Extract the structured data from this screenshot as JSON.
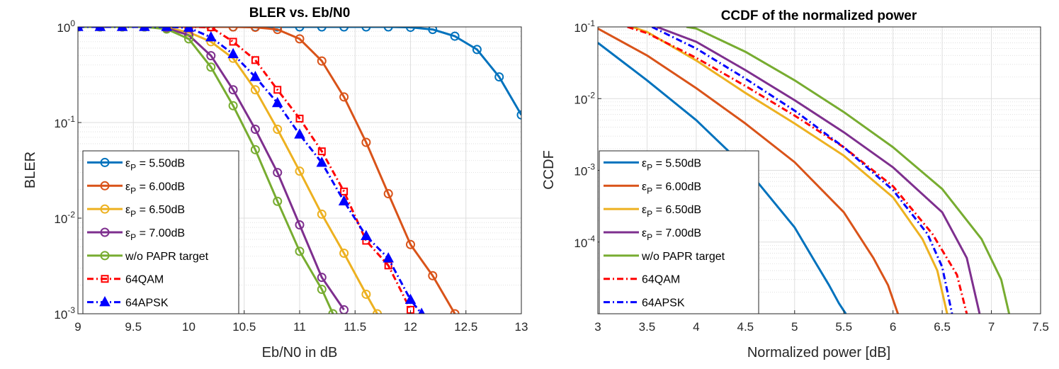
{
  "chart_data": [
    {
      "type": "line",
      "title": "BLER vs. Eb/N0",
      "xlabel": "Eb/N0 in dB",
      "ylabel": "BLER",
      "xscale": "linear",
      "yscale": "log",
      "xlim": [
        9,
        13
      ],
      "ylim": [
        0.001,
        1
      ],
      "xticks": [
        9,
        9.5,
        10,
        10.5,
        11,
        11.5,
        12,
        12.5,
        13
      ],
      "xtick_labels": [
        "9",
        "9.5",
        "10",
        "10.5",
        "11",
        "11.5",
        "12",
        "12.5",
        "13"
      ],
      "yticks": [
        {
          "value": 1,
          "base": "10",
          "exp": "0"
        },
        {
          "value": 0.1,
          "base": "10",
          "exp": "-1"
        },
        {
          "value": 0.01,
          "base": "10",
          "exp": "-2"
        },
        {
          "value": 0.001,
          "base": "10",
          "exp": "-3"
        }
      ],
      "grid": true,
      "legend_position": "bottom-left",
      "series": [
        {
          "name": "εP = 5.50dB",
          "sym": "ε",
          "sub": "P",
          "rest": " = 5.50dB",
          "color": "#0072BD",
          "style": "solid",
          "marker": "circle",
          "x": [
            9,
            9.2,
            9.4,
            9.6,
            9.8,
            10,
            10.2,
            10.4,
            10.6,
            10.8,
            11,
            11.2,
            11.4,
            11.6,
            11.8,
            12,
            12.2,
            12.4,
            12.6,
            12.8,
            13
          ],
          "y": [
            1,
            1,
            1,
            1,
            1,
            1,
            1,
            1,
            1,
            1,
            1,
            1,
            1,
            1,
            1,
            0.99,
            0.94,
            0.8,
            0.58,
            0.3,
            0.12
          ]
        },
        {
          "name": "εP = 6.00dB",
          "sym": "ε",
          "sub": "P",
          "rest": " = 6.00dB",
          "color": "#D95319",
          "style": "solid",
          "marker": "circle",
          "x": [
            9,
            9.2,
            9.4,
            9.6,
            9.8,
            10,
            10.2,
            10.4,
            10.6,
            10.8,
            11,
            11.2,
            11.4,
            11.6,
            11.8,
            12,
            12.2,
            12.4
          ],
          "y": [
            1,
            1,
            1,
            1,
            1,
            1,
            1,
            1,
            0.99,
            0.94,
            0.75,
            0.44,
            0.185,
            0.062,
            0.018,
            0.0053,
            0.0025,
            0.001
          ]
        },
        {
          "name": "εP = 6.50dB",
          "sym": "ε",
          "sub": "P",
          "rest": " = 6.50dB",
          "color": "#EDB120",
          "style": "solid",
          "marker": "circle",
          "x": [
            9,
            9.2,
            9.4,
            9.6,
            9.8,
            10,
            10.2,
            10.4,
            10.6,
            10.8,
            11,
            11.2,
            11.4,
            11.6,
            11.7
          ],
          "y": [
            1,
            1,
            1,
            1,
            0.98,
            0.88,
            0.7,
            0.47,
            0.22,
            0.085,
            0.031,
            0.011,
            0.0043,
            0.0016,
            0.001
          ]
        },
        {
          "name": "εP = 7.00dB",
          "sym": "ε",
          "sub": "P",
          "rest": " = 7.00dB",
          "color": "#7E2F8E",
          "style": "solid",
          "marker": "circle",
          "x": [
            9,
            9.2,
            9.4,
            9.6,
            9.8,
            10,
            10.2,
            10.4,
            10.6,
            10.8,
            11,
            11.2,
            11.4
          ],
          "y": [
            1,
            1,
            1,
            1,
            0.97,
            0.82,
            0.5,
            0.22,
            0.085,
            0.03,
            0.0085,
            0.0024,
            0.0011
          ]
        },
        {
          "name": "w/o PAPR target",
          "sym": "",
          "sub": "",
          "rest": "w/o PAPR target",
          "color": "#77AC30",
          "style": "solid",
          "marker": "circle",
          "x": [
            9,
            9.2,
            9.4,
            9.6,
            9.8,
            10,
            10.2,
            10.4,
            10.6,
            10.8,
            11,
            11.2,
            11.3
          ],
          "y": [
            1,
            1,
            1,
            1,
            0.95,
            0.75,
            0.38,
            0.15,
            0.052,
            0.015,
            0.0045,
            0.0018,
            0.001
          ]
        },
        {
          "name": "64QAM",
          "sym": "",
          "sub": "",
          "rest": "64QAM",
          "color": "#FF0000",
          "style": "dashdot",
          "marker": "square",
          "x": [
            9,
            9.2,
            9.4,
            9.6,
            9.8,
            10,
            10.2,
            10.4,
            10.6,
            10.8,
            11,
            11.2,
            11.4,
            11.6,
            11.8,
            12
          ],
          "y": [
            1,
            1,
            1,
            1,
            1,
            1,
            0.99,
            0.7,
            0.45,
            0.22,
            0.11,
            0.05,
            0.019,
            0.0058,
            0.0032,
            0.0011
          ]
        },
        {
          "name": "64APSK",
          "sym": "",
          "sub": "",
          "rest": "64APSK",
          "color": "#0000FF",
          "style": "dashdot",
          "marker": "triangle",
          "x": [
            9,
            9.2,
            9.4,
            9.6,
            9.8,
            10,
            10.2,
            10.4,
            10.6,
            10.8,
            11,
            11.2,
            11.4,
            11.6,
            11.8,
            12,
            12.1
          ],
          "y": [
            1,
            1,
            1,
            1,
            1,
            0.98,
            0.78,
            0.52,
            0.3,
            0.16,
            0.075,
            0.038,
            0.015,
            0.0065,
            0.0038,
            0.0014,
            0.001
          ]
        }
      ]
    },
    {
      "type": "line",
      "title": "CCDF of the normalized power",
      "xlabel": "Normalized power [dB]",
      "ylabel": "CCDF",
      "xscale": "linear",
      "yscale": "log",
      "xlim": [
        3,
        7.5
      ],
      "ylim": [
        1e-05,
        0.1
      ],
      "xticks": [
        3,
        3.5,
        4,
        4.5,
        5,
        5.5,
        6,
        6.5,
        7,
        7.5
      ],
      "xtick_labels": [
        "3",
        "3.5",
        "4",
        "4.5",
        "5",
        "5.5",
        "6",
        "6.5",
        "7",
        "7.5"
      ],
      "yticks": [
        {
          "value": 0.1,
          "base": "10",
          "exp": "-1"
        },
        {
          "value": 0.01,
          "base": "10",
          "exp": "-2"
        },
        {
          "value": 0.001,
          "base": "10",
          "exp": "-3"
        },
        {
          "value": 0.0001,
          "base": "10",
          "exp": "-4"
        }
      ],
      "grid": true,
      "legend_position": "bottom-left",
      "series": [
        {
          "name": "εP = 5.50dB",
          "sym": "ε",
          "sub": "P",
          "rest": " = 5.50dB",
          "color": "#0072BD",
          "style": "solid",
          "marker": "none",
          "x": [
            3,
            3.5,
            4,
            4.5,
            5,
            5.2,
            5.35,
            5.45,
            5.52
          ],
          "y": [
            0.06,
            0.018,
            0.005,
            0.0011,
            0.00016,
            5.5e-05,
            2.5e-05,
            1.4e-05,
            1e-05
          ]
        },
        {
          "name": "εP = 6.00dB",
          "sym": "ε",
          "sub": "P",
          "rest": " = 6.00dB",
          "color": "#D95319",
          "style": "solid",
          "marker": "none",
          "x": [
            3,
            3.5,
            4,
            4.5,
            5,
            5.5,
            5.8,
            5.95,
            6.05
          ],
          "y": [
            0.095,
            0.04,
            0.014,
            0.0045,
            0.0013,
            0.00026,
            6e-05,
            2.5e-05,
            1e-05
          ]
        },
        {
          "name": "εP = 6.50dB",
          "sym": "ε",
          "sub": "P",
          "rest": " = 6.50dB",
          "color": "#EDB120",
          "style": "solid",
          "marker": "none",
          "x": [
            3.35,
            3.5,
            4,
            4.5,
            5,
            5.5,
            6,
            6.3,
            6.45,
            6.55
          ],
          "y": [
            0.1,
            0.085,
            0.034,
            0.012,
            0.0045,
            0.0016,
            0.00042,
            0.00011,
            4e-05,
            1e-05
          ]
        },
        {
          "name": "εP = 7.00dB",
          "sym": "ε",
          "sub": "P",
          "rest": " = 7.00dB",
          "color": "#7E2F8E",
          "style": "solid",
          "marker": "none",
          "x": [
            3.6,
            4,
            4.5,
            5,
            5.5,
            6,
            6.5,
            6.75,
            6.88
          ],
          "y": [
            0.1,
            0.062,
            0.025,
            0.0095,
            0.0034,
            0.0011,
            0.00026,
            6e-05,
            1e-05
          ]
        },
        {
          "name": "w/o PAPR target",
          "sym": "",
          "sub": "",
          "rest": "w/o PAPR target",
          "color": "#77AC30",
          "style": "solid",
          "marker": "none",
          "x": [
            3.9,
            4,
            4.5,
            5,
            5.5,
            6,
            6.5,
            6.9,
            7.1,
            7.18
          ],
          "y": [
            0.1,
            0.095,
            0.045,
            0.018,
            0.0065,
            0.0021,
            0.00055,
            0.00011,
            3e-05,
            1e-05
          ]
        },
        {
          "name": "64QAM",
          "sym": "",
          "sub": "",
          "rest": "64QAM",
          "color": "#FF0000",
          "style": "dashdot",
          "marker": "none",
          "x": [
            3.3,
            3.5,
            4,
            4.5,
            5,
            5.5,
            6,
            6.4,
            6.65,
            6.75
          ],
          "y": [
            0.1,
            0.082,
            0.037,
            0.015,
            0.0058,
            0.0021,
            0.0006,
            0.00013,
            3.5e-05,
            1e-05
          ]
        },
        {
          "name": "64APSK",
          "sym": "",
          "sub": "",
          "rest": "64APSK",
          "color": "#0000FF",
          "style": "dashdot",
          "marker": "none",
          "x": [
            3.55,
            4,
            4.5,
            5,
            5.5,
            6,
            6.35,
            6.5,
            6.6
          ],
          "y": [
            0.1,
            0.05,
            0.019,
            0.0068,
            0.0021,
            0.00053,
            0.00013,
            4.5e-05,
            1e-05
          ]
        }
      ]
    }
  ]
}
